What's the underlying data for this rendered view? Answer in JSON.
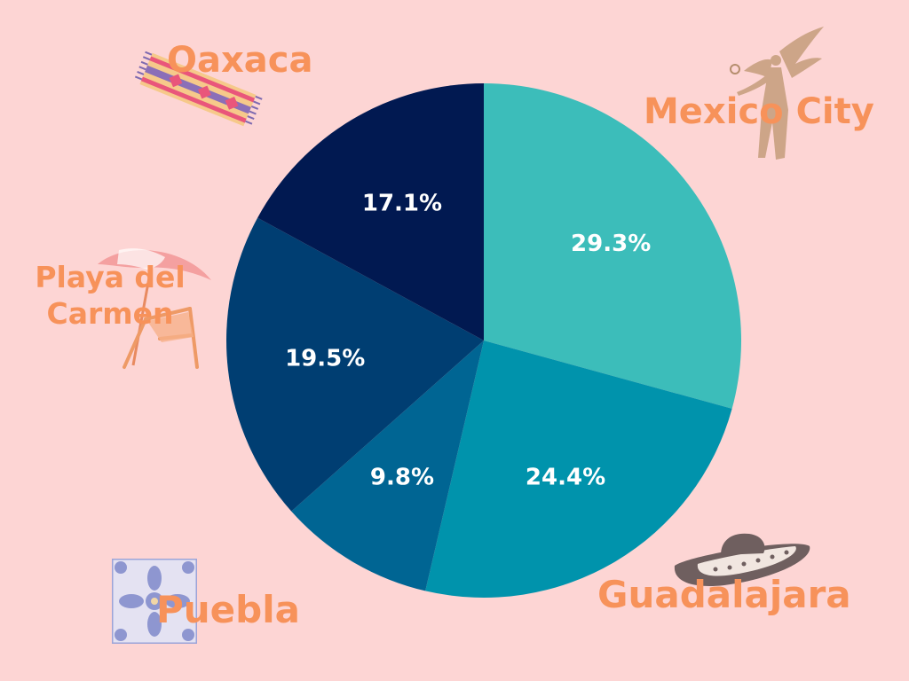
{
  "chart_data": {
    "type": "pie",
    "title": "",
    "start_angle_deg": 0,
    "direction": "clockwise",
    "slices": [
      {
        "label": "Mexico City",
        "value": 29.3,
        "value_label": "29.3%",
        "color": "#3CBDBA"
      },
      {
        "label": "Guadalajara",
        "value": 24.4,
        "value_label": "24.4%",
        "color": "#0093AC"
      },
      {
        "label": "Puebla",
        "value": 9.8,
        "value_label": "9.8%",
        "color": "#006593"
      },
      {
        "label": "Playa del Carmen",
        "value": 19.5,
        "value_label": "19.5%",
        "color": "#003E72"
      },
      {
        "label": "Oaxaca",
        "value": 17.1,
        "value_label": "17.1%",
        "color": "#011951"
      }
    ]
  },
  "categories": {
    "oaxaca": "Oaxaca",
    "mexico_city": "Mexico City",
    "playa_del_carmen": "Playa del Carmen",
    "puebla": "Puebla",
    "guadalajara": "Guadalajara"
  },
  "decorations": {
    "oaxaca": "woven-rug-icon",
    "mexico_city": "angel-statue-icon",
    "playa_del_carmen": "beach-umbrella-chair-icon",
    "puebla": "talavera-tile-icon",
    "guadalajara": "sombrero-icon"
  },
  "colors": {
    "background": "#FDD5D4",
    "city_label": "#F7925A",
    "value_label": "#FFFFFF"
  }
}
